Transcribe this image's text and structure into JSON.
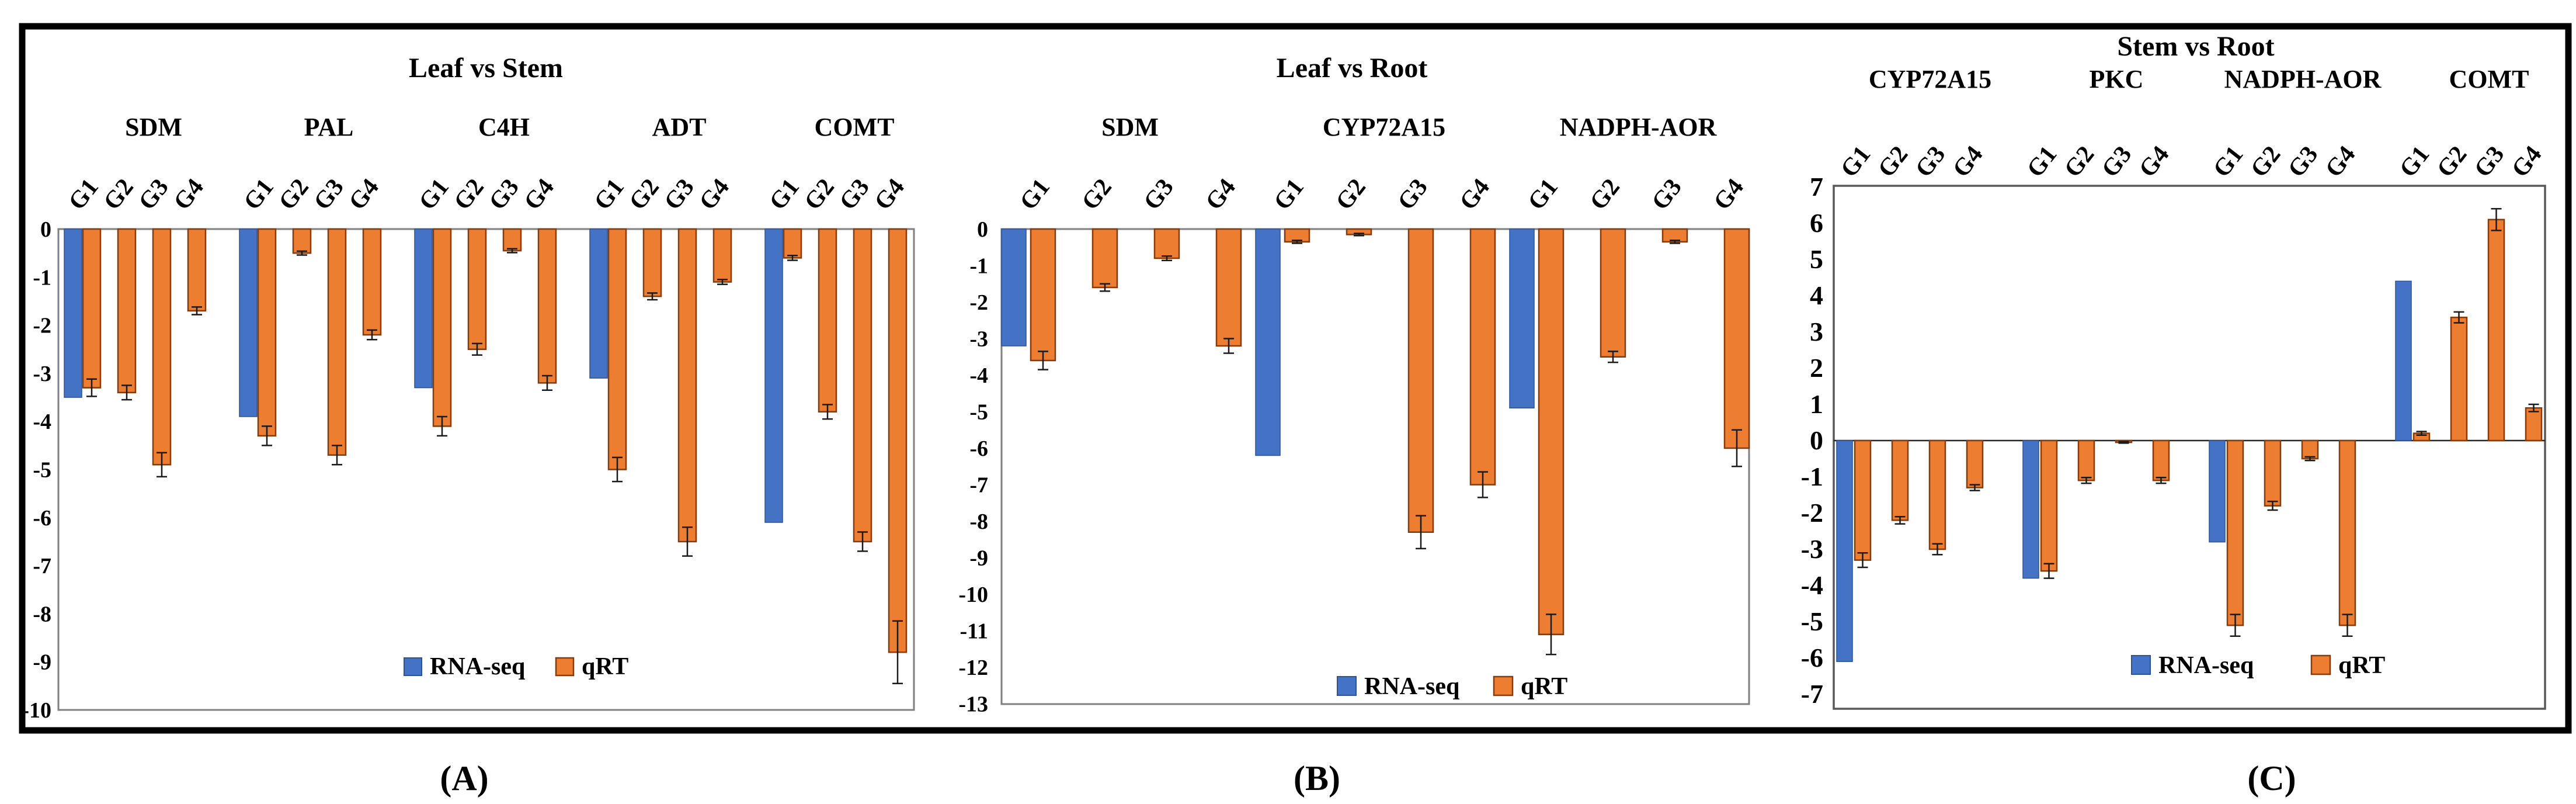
{
  "figure": {
    "captions": [
      "(A)",
      "(B)",
      "(C)"
    ],
    "legend": {
      "rna_seq": "RNA-seq",
      "qrt": "qRT"
    },
    "colors": {
      "rna_seq_fill": "#4472C4",
      "rna_seq_border": "#2E5395",
      "qrt_fill": "#ED7D31",
      "qrt_border": "#843C0C",
      "plot_frame": "#808080",
      "plot_frame_dark": "#595959",
      "outer_border": "#000000",
      "error_bar": "#1A1A1A"
    }
  },
  "chart_data": [
    {
      "type": "bar",
      "panel": "A",
      "title": "Leaf vs Stem",
      "ylabel": "",
      "ylim": [
        -10,
        0
      ],
      "ytick_step": 1,
      "grid": false,
      "legend_entries": [
        "RNA-seq",
        "qRT"
      ],
      "legend_position": "bottom-center",
      "groups": [
        "G1",
        "G2",
        "G3",
        "G4"
      ],
      "genes": [
        {
          "name": "SDM",
          "rna_seq": -3.5,
          "qrt": [
            -3.3,
            -3.4,
            -4.9,
            -1.7
          ],
          "qrt_err": [
            0.18,
            0.15,
            0.25,
            0.08
          ]
        },
        {
          "name": "PAL",
          "rna_seq": -3.9,
          "qrt": [
            -4.3,
            -0.5,
            -4.7,
            -2.2
          ],
          "qrt_err": [
            0.2,
            0.04,
            0.2,
            0.1
          ]
        },
        {
          "name": "C4H",
          "rna_seq": -3.3,
          "qrt": [
            -4.1,
            -2.5,
            -0.45,
            -3.2
          ],
          "qrt_err": [
            0.2,
            0.12,
            0.04,
            0.15
          ]
        },
        {
          "name": "ADT",
          "rna_seq": -3.1,
          "qrt": [
            -5.0,
            -1.4,
            -6.5,
            -1.1
          ],
          "qrt_err": [
            0.25,
            0.07,
            0.3,
            0.05
          ]
        },
        {
          "name": "COMT",
          "rna_seq": -6.1,
          "qrt": [
            -0.6,
            -3.8,
            -6.5,
            -8.8
          ],
          "qrt_err": [
            0.05,
            0.15,
            0.2,
            0.65
          ]
        }
      ]
    },
    {
      "type": "bar",
      "panel": "B",
      "title": "Leaf vs Root",
      "ylabel": "",
      "ylim": [
        -13,
        0
      ],
      "ytick_step": 1,
      "grid": false,
      "legend_entries": [
        "RNA-seq",
        "qRT"
      ],
      "legend_position": "bottom-center",
      "groups": [
        "G1",
        "G2",
        "G3",
        "G4"
      ],
      "genes": [
        {
          "name": "SDM",
          "rna_seq": -3.2,
          "qrt": [
            -3.6,
            -1.6,
            -0.8,
            -3.2
          ],
          "qrt_err": [
            0.25,
            0.1,
            0.06,
            0.2
          ]
        },
        {
          "name": "CYP72A15",
          "rna_seq": -6.2,
          "qrt": [
            -0.35,
            -0.15,
            -8.3,
            -7.0
          ],
          "qrt_err": [
            0.04,
            0.03,
            0.45,
            0.35
          ]
        },
        {
          "name": "NADPH-AOR",
          "rna_seq": -4.9,
          "qrt": [
            -11.1,
            -3.5,
            -0.35,
            -6.0
          ],
          "qrt_err": [
            0.55,
            0.15,
            0.04,
            0.5
          ]
        }
      ]
    },
    {
      "type": "bar",
      "panel": "C",
      "title": "Stem vs Root",
      "ylabel": "",
      "ylim": [
        -7,
        7
      ],
      "ytick_step": 1,
      "grid": false,
      "legend_entries": [
        "RNA-seq",
        "qRT"
      ],
      "legend_position": "bottom-center",
      "groups": [
        "G1",
        "G2",
        "G3",
        "G4"
      ],
      "genes": [
        {
          "name": "CYP72A15",
          "rna_seq": -6.1,
          "qrt": [
            -3.3,
            -2.2,
            -3.0,
            -1.3
          ],
          "qrt_err": [
            0.2,
            0.1,
            0.15,
            0.08
          ]
        },
        {
          "name": "PKC",
          "rna_seq": -3.8,
          "qrt": [
            -3.6,
            -1.1,
            -0.05,
            -1.1
          ],
          "qrt_err": [
            0.2,
            0.08,
            0.02,
            0.08
          ]
        },
        {
          "name": "NADPH-AOR",
          "rna_seq": -2.8,
          "qrt": [
            -5.1,
            -1.8,
            -0.5,
            -5.1
          ],
          "qrt_err": [
            0.3,
            0.12,
            0.05,
            0.3
          ]
        },
        {
          "name": "COMT",
          "rna_seq": 4.4,
          "qrt": [
            0.2,
            3.4,
            6.1,
            0.9
          ],
          "qrt_err": [
            0.05,
            0.15,
            0.3,
            0.1
          ]
        }
      ]
    }
  ]
}
